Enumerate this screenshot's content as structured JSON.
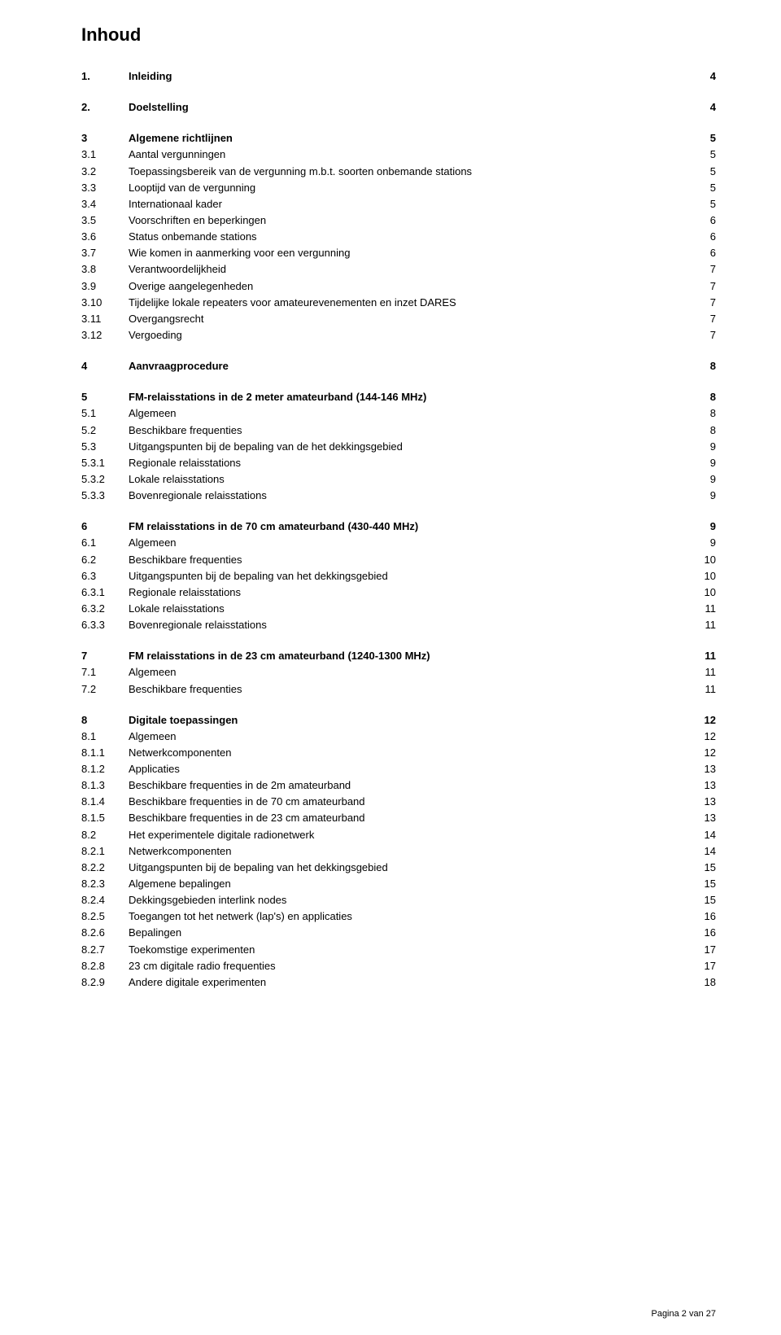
{
  "title": "Inhoud",
  "footer": "Pagina 2 van 27",
  "colors": {
    "text": "#000000",
    "background": "#ffffff"
  },
  "typography": {
    "font_family": "Verdana",
    "title_size_pt": 16,
    "body_size_pt": 10,
    "line_height": 1.55
  },
  "toc": [
    {
      "type": "row",
      "num": "1.",
      "label": "Inleiding",
      "page": "4",
      "bold": true
    },
    {
      "type": "gap"
    },
    {
      "type": "row",
      "num": "2.",
      "label": "Doelstelling",
      "page": "4",
      "bold": true
    },
    {
      "type": "gap"
    },
    {
      "type": "row",
      "num": "3",
      "label": "Algemene richtlijnen",
      "page": "5",
      "bold": true
    },
    {
      "type": "row",
      "num": "3.1",
      "label": "Aantal vergunningen",
      "page": "5",
      "bold": false
    },
    {
      "type": "row",
      "num": "3.2",
      "label": "Toepassingsbereik van de vergunning m.b.t. soorten onbemande stations",
      "page": "5",
      "bold": false
    },
    {
      "type": "row",
      "num": "3.3",
      "label": "Looptijd van de vergunning",
      "page": "5",
      "bold": false
    },
    {
      "type": "row",
      "num": "3.4",
      "label": "Internationaal kader",
      "page": "5",
      "bold": false
    },
    {
      "type": "row",
      "num": "3.5",
      "label": "Voorschriften en beperkingen",
      "page": "6",
      "bold": false
    },
    {
      "type": "row",
      "num": "3.6",
      "label": "Status onbemande stations",
      "page": "6",
      "bold": false
    },
    {
      "type": "row",
      "num": "3.7",
      "label": "Wie komen in aanmerking voor een vergunning",
      "page": "6",
      "bold": false
    },
    {
      "type": "row",
      "num": "3.8",
      "label": "Verantwoordelijkheid",
      "page": "7",
      "bold": false
    },
    {
      "type": "row",
      "num": "3.9",
      "label": "Overige aangelegenheden",
      "page": "7",
      "bold": false
    },
    {
      "type": "row",
      "num": "3.10",
      "label": "Tijdelijke lokale repeaters voor amateurevenementen en inzet DARES",
      "page": "7",
      "bold": false
    },
    {
      "type": "row",
      "num": "3.11",
      "label": "Overgangsrecht",
      "page": "7",
      "bold": false
    },
    {
      "type": "row",
      "num": "3.12",
      "label": "Vergoeding",
      "page": "7",
      "bold": false
    },
    {
      "type": "gap"
    },
    {
      "type": "row",
      "num": "4",
      "label": "Aanvraagprocedure",
      "page": "8",
      "bold": true
    },
    {
      "type": "gap"
    },
    {
      "type": "row",
      "num": "5",
      "label": "FM-relaisstations in de 2 meter amateurband (144-146 MHz)",
      "page": "8",
      "bold": true
    },
    {
      "type": "row",
      "num": "5.1",
      "label": "Algemeen",
      "page": "8",
      "bold": false
    },
    {
      "type": "row",
      "num": "5.2",
      "label": "Beschikbare frequenties",
      "page": "8",
      "bold": false
    },
    {
      "type": "row",
      "num": "5.3",
      "label": "Uitgangspunten bij de bepaling van de het dekkingsgebied",
      "page": "9",
      "bold": false
    },
    {
      "type": "row",
      "num": "5.3.1",
      "label": "Regionale relaisstations",
      "page": "9",
      "bold": false
    },
    {
      "type": "row",
      "num": "5.3.2",
      "label": "Lokale relaisstations",
      "page": "9",
      "bold": false
    },
    {
      "type": "row",
      "num": "5.3.3",
      "label": "Bovenregionale relaisstations",
      "page": "9",
      "bold": false
    },
    {
      "type": "gap"
    },
    {
      "type": "row",
      "num": "6",
      "label": "FM relaisstations in de 70 cm amateurband (430-440 MHz)",
      "page": "9",
      "bold": true
    },
    {
      "type": "row",
      "num": "6.1",
      "label": "Algemeen",
      "page": "9",
      "bold": false
    },
    {
      "type": "row",
      "num": "6.2",
      "label": "Beschikbare frequenties",
      "page": "10",
      "bold": false
    },
    {
      "type": "row",
      "num": "6.3",
      "label": "Uitgangspunten bij de bepaling van het  dekkingsgebied",
      "page": "10",
      "bold": false
    },
    {
      "type": "row",
      "num": "6.3.1",
      "label": "Regionale relaisstations",
      "page": "10",
      "bold": false
    },
    {
      "type": "row",
      "num": "6.3.2",
      "label": "Lokale relaisstations",
      "page": "11",
      "bold": false
    },
    {
      "type": "row",
      "num": "6.3.3",
      "label": "Bovenregionale relaisstations",
      "page": "11",
      "bold": false
    },
    {
      "type": "gap"
    },
    {
      "type": "row",
      "num": "7",
      "label": "FM relaisstations in de 23 cm amateurband (1240-1300 MHz)",
      "page": "11",
      "bold": true
    },
    {
      "type": "row",
      "num": "7.1",
      "label": "Algemeen",
      "page": "11",
      "bold": false
    },
    {
      "type": "row",
      "num": "7.2",
      "label": "Beschikbare frequenties",
      "page": "11",
      "bold": false
    },
    {
      "type": "gap"
    },
    {
      "type": "row",
      "num": "8",
      "label": "Digitale toepassingen",
      "page": "12",
      "bold": true
    },
    {
      "type": "row",
      "num": "8.1",
      "label": "Algemeen",
      "page": "12",
      "bold": false
    },
    {
      "type": "row",
      "num": "8.1.1",
      "label": "Netwerkcomponenten",
      "page": "12",
      "bold": false
    },
    {
      "type": "row",
      "num": "8.1.2",
      "label": "Applicaties",
      "page": "13",
      "bold": false
    },
    {
      "type": "row",
      "num": "8.1.3",
      "label": "Beschikbare frequenties in de 2m amateurband",
      "page": "13",
      "bold": false
    },
    {
      "type": "row",
      "num": "8.1.4",
      "label": "Beschikbare frequenties in de 70 cm amateurband",
      "page": "13",
      "bold": false
    },
    {
      "type": "row",
      "num": "8.1.5",
      "label": "Beschikbare frequenties in de 23 cm amateurband",
      "page": "13",
      "bold": false
    },
    {
      "type": "row",
      "num": "8.2",
      "label": "Het experimentele digitale radionetwerk",
      "page": "14",
      "bold": false
    },
    {
      "type": "row",
      "num": "8.2.1",
      "label": "Netwerkcomponenten",
      "page": "14",
      "bold": false
    },
    {
      "type": "row",
      "num": "8.2.2",
      "label": "Uitgangspunten bij de bepaling van het dekkingsgebied",
      "page": "15",
      "bold": false
    },
    {
      "type": "row",
      "num": "8.2.3",
      "label": "Algemene bepalingen",
      "page": "15",
      "bold": false
    },
    {
      "type": "row",
      "num": "8.2.4",
      "label": "Dekkingsgebieden interlink nodes",
      "page": "15",
      "bold": false
    },
    {
      "type": "row",
      "num": "8.2.5",
      "label": "Toegangen tot het netwerk (lap's) en applicaties",
      "page": "16",
      "bold": false
    },
    {
      "type": "row",
      "num": "8.2.6",
      "label": "Bepalingen",
      "page": "16",
      "bold": false
    },
    {
      "type": "row",
      "num": "8.2.7",
      "label": "Toekomstige experimenten",
      "page": "17",
      "bold": false
    },
    {
      "type": "row",
      "num": "8.2.8",
      "label": "23 cm digitale radio frequenties",
      "page": "17",
      "bold": false
    },
    {
      "type": "row",
      "num": "8.2.9",
      "label": "Andere digitale experimenten",
      "page": "18",
      "bold": false
    }
  ]
}
